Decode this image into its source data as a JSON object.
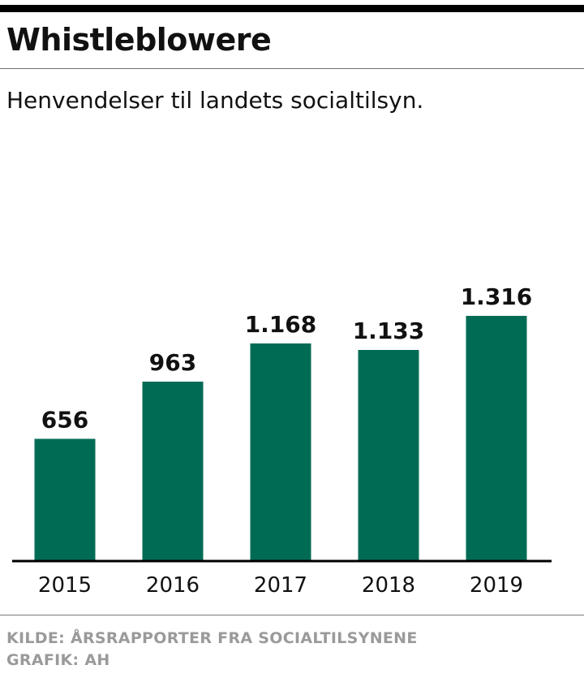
{
  "header": {
    "title": "Whistleblowere",
    "subtitle": "Henvendelser til landets socialtilsyn."
  },
  "footer": {
    "source": "KILDE: ÅRSRAPPORTER  FRA SOCIALTILSYNENE",
    "credit": "GRAFIK: AH"
  },
  "colors": {
    "bar": "#006b55",
    "axis": "#000000",
    "text": "#111111",
    "footer_text": "#9a9a9a"
  },
  "chart_data": {
    "type": "bar",
    "title": "Whistleblowere",
    "subtitle": "Henvendelser til landets socialtilsyn.",
    "categories": [
      "2015",
      "2016",
      "2017",
      "2018",
      "2019"
    ],
    "values": [
      656,
      963,
      1168,
      1133,
      1316
    ],
    "value_labels": [
      "656",
      "963",
      "1.168",
      "1.133",
      "1.316"
    ],
    "xlabel": "",
    "ylabel": "",
    "ylim": [
      0,
      1316
    ],
    "grid": false,
    "legend": "none"
  }
}
